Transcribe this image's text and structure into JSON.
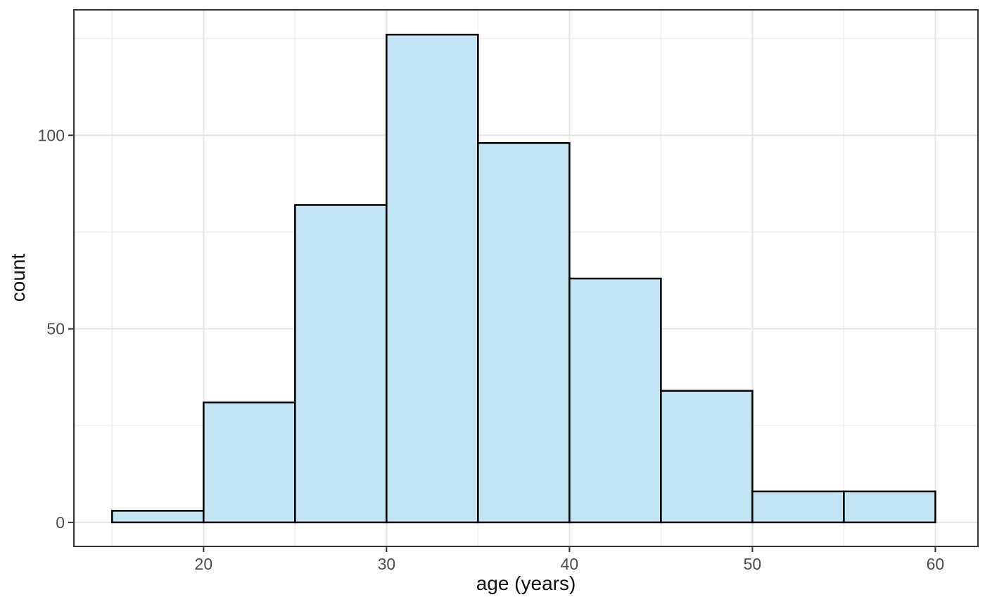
{
  "chart_data": {
    "type": "bar",
    "subtype": "histogram",
    "title": "",
    "xlabel": "age (years)",
    "ylabel": "count",
    "bin_width": 5,
    "bin_edges": [
      15,
      20,
      25,
      30,
      35,
      40,
      45,
      50,
      55,
      60
    ],
    "categories": [
      "15-20",
      "20-25",
      "25-30",
      "30-35",
      "35-40",
      "40-45",
      "45-50",
      "50-55",
      "55-60"
    ],
    "values": [
      3,
      31,
      82,
      126,
      98,
      63,
      34,
      8,
      8
    ],
    "x_ticks": [
      20,
      30,
      40,
      50,
      60
    ],
    "x_minor_ticks": [
      15,
      25,
      35,
      45,
      55
    ],
    "y_ticks": [
      0,
      50,
      100
    ],
    "y_minor_ticks": [
      25,
      75,
      125
    ],
    "xlim": [
      12.91,
      62.33
    ],
    "ylim": [
      -6.2,
      132.4
    ],
    "grid": "on",
    "legend_position": "none",
    "colors": {
      "bar_fill": "#c3e4f2",
      "bar_stroke": "#000000",
      "grid_major": "#e6e6e6",
      "grid_minor": "#f0f0f0",
      "panel_border": "#333333",
      "tick_mark": "#333333",
      "tick_label": "#4d4d4d",
      "axis_title": "#111111",
      "background": "#ffffff"
    }
  }
}
